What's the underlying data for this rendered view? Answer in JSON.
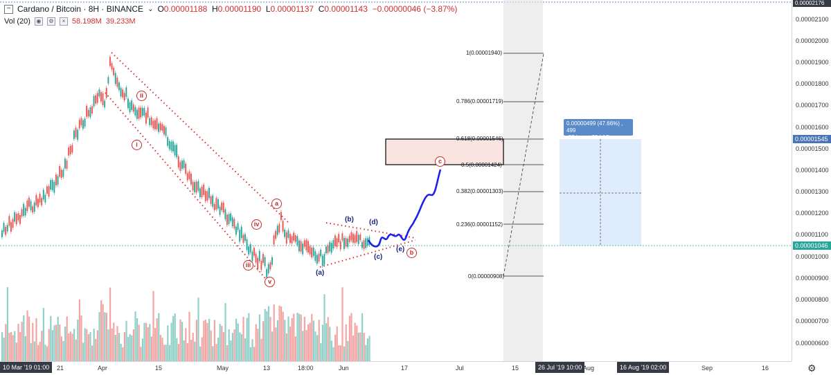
{
  "header": {
    "symbol": "Cardano / Bitcoin · 8H · BINANCE",
    "open_key": "O",
    "open": "0.00001188",
    "high_key": "H",
    "high": "0.00001190",
    "low_key": "L",
    "low": "0.00001137",
    "close_key": "C",
    "close": "0.00001143",
    "change": "−0.00000046 (−3.87%)"
  },
  "volume": {
    "label": "Vol (20)",
    "value1": "58.198M",
    "value2": "39.233M"
  },
  "price_axis": {
    "top_tag": "0.00002176",
    "labels": [
      "0.00002100",
      "0.00002000",
      "0.00001900",
      "0.00001800",
      "0.00001700",
      "0.00001600",
      "0.00001500",
      "0.00001400",
      "0.00001300",
      "0.00001200",
      "0.00001100",
      "0.00001000",
      "0.00000900",
      "0.00000800",
      "0.00000700",
      "0.00000600"
    ],
    "tag_measure": "0.00001545",
    "tag_current": "0.00001046"
  },
  "time_axis": {
    "start_tag": "10 Mar '19   01:00",
    "labels": [
      "21",
      "Apr",
      "15",
      "May",
      "13",
      "18:00",
      "Jun",
      "17",
      "Jul",
      "15",
      "Aug",
      "Sep",
      "16"
    ],
    "tag1": "26 Jul '19   10:00",
    "tag2": "16 Aug '19   02:00"
  },
  "fib": [
    {
      "label": "1(0.00001940)"
    },
    {
      "label": "0.786(0.00001719)"
    },
    {
      "label": "0.618(0.00001546)"
    },
    {
      "label": "0.5(0.00001424)"
    },
    {
      "label": "0.382(0.00001303)"
    },
    {
      "label": "0.236(0.00001152)"
    },
    {
      "label": "0(0.00000908)"
    }
  ],
  "measure": {
    "line1": "0.00000499 (47.66%) , 499",
    "line2": "-62 bars, -20d 16h"
  },
  "waves": {
    "red": {
      "ii": "ii",
      "i": "i",
      "iii": "iii",
      "iv": "iv",
      "v": "v",
      "a": "a",
      "b": "b",
      "c": "c"
    },
    "blue": {
      "a": "(a)",
      "b": "(b)",
      "c": "(c)",
      "d": "(d)",
      "e": "(e)"
    }
  },
  "colors": {
    "up": "#26a69a",
    "down": "#ef5350",
    "projection": "#1e22e8",
    "fib_zone": "#f7e3df"
  }
}
